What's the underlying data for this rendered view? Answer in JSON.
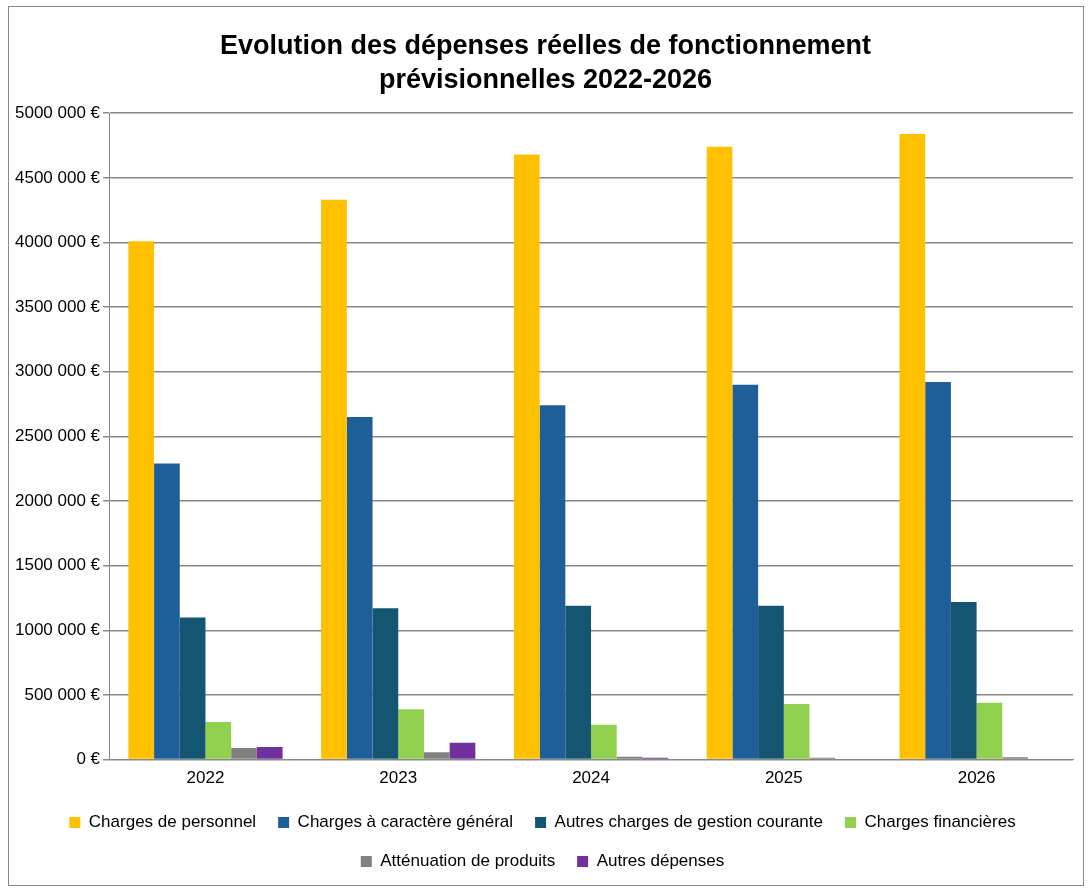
{
  "chart_data": {
    "type": "bar",
    "title": "Evolution des dépenses réelles de fonctionnement prévisionnelles 2022-2026",
    "categories": [
      "2022",
      "2023",
      "2024",
      "2025",
      "2026"
    ],
    "series": [
      {
        "name": "Charges de personnel",
        "color": "#ffc000",
        "values": [
          4010000,
          4330000,
          4680000,
          4740000,
          4840000
        ]
      },
      {
        "name": "Charges à caractère général",
        "color": "#1f5f99",
        "values": [
          2290000,
          2650000,
          2740000,
          2900000,
          2920000
        ]
      },
      {
        "name": "Autres charges de gestion courante",
        "color": "#145572",
        "values": [
          1100000,
          1170000,
          1190000,
          1190000,
          1220000
        ]
      },
      {
        "name": "Charges financières",
        "color": "#92d050",
        "values": [
          290000,
          390000,
          270000,
          430000,
          440000
        ]
      },
      {
        "name": "Atténuation de produits",
        "color": "#808080",
        "values": [
          89000,
          56000,
          22000,
          15000,
          19000
        ]
      },
      {
        "name": "Autres dépenses",
        "color": "#7030a0",
        "values": [
          97000,
          130000,
          14000,
          0,
          0
        ]
      }
    ],
    "ylim": [
      0,
      5000000
    ],
    "yticks": [
      {
        "value": 0,
        "label": "0 €"
      },
      {
        "value": 500000,
        "label": "500 000 €"
      },
      {
        "value": 1000000,
        "label": "1000 000 €"
      },
      {
        "value": 1500000,
        "label": "1500 000 €"
      },
      {
        "value": 2000000,
        "label": "2000 000 €"
      },
      {
        "value": 2500000,
        "label": "2500 000 €"
      },
      {
        "value": 3000000,
        "label": "3000 000 €"
      },
      {
        "value": 3500000,
        "label": "3500 000 €"
      },
      {
        "value": 4000000,
        "label": "4000 000 €"
      },
      {
        "value": 4500000,
        "label": "4500 000 €"
      },
      {
        "value": 5000000,
        "label": "5000 000 €"
      }
    ],
    "grid": "y",
    "legend": "bottom"
  }
}
